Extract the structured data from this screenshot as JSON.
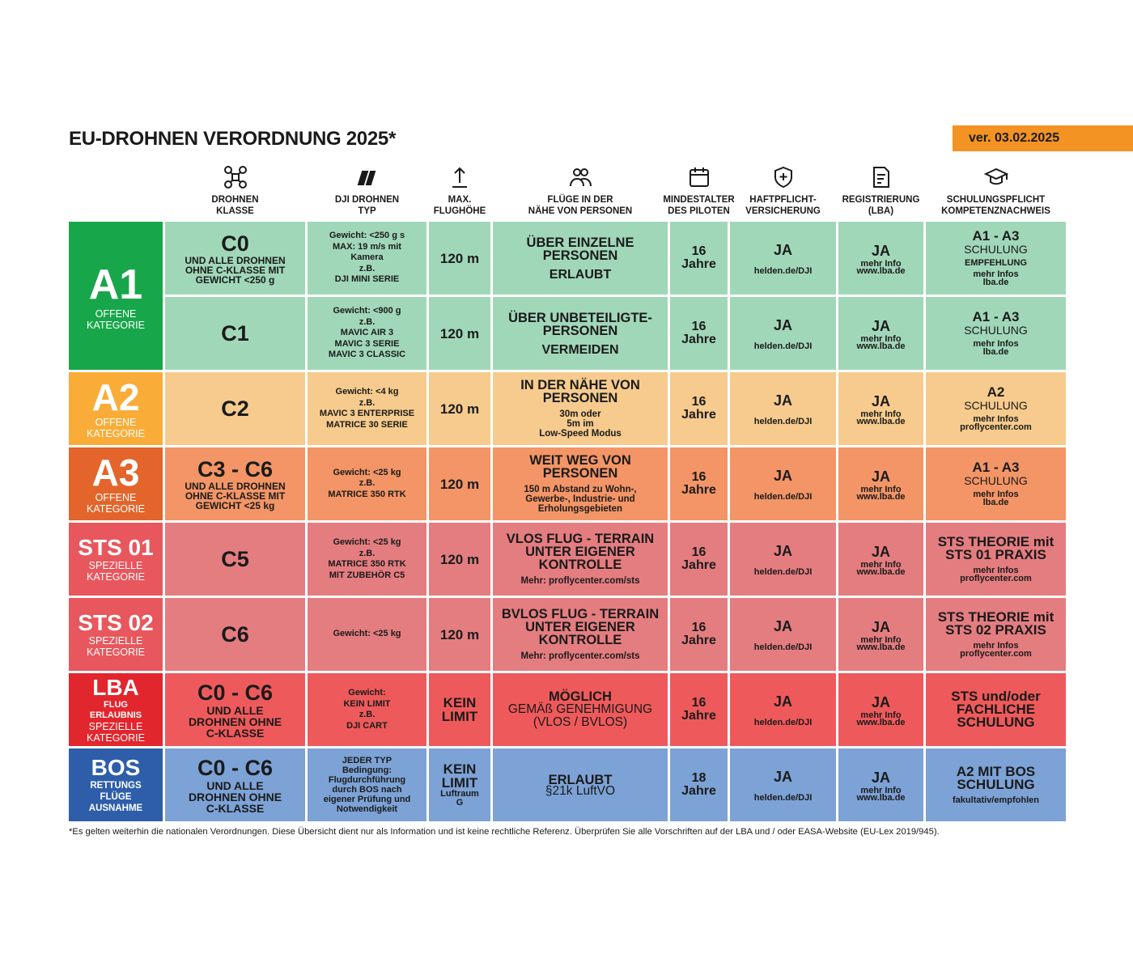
{
  "header": {
    "title": "EU-DROHNEN VERORDNUNG 2025*",
    "version": "ver. 03.02.2025"
  },
  "table": {
    "columns": [
      "DROHNEN\nKLASSE",
      "DJI DROHNEN\nTYP",
      "MAX.\nFLUGHÖHE",
      "FLÜGE IN DER\nNÄHE VON PERSONEN",
      "MINDESTALTER\nDES PILOTEN",
      "HAFTPFLICHT-\nVERSICHERUNG",
      "REGISTRIERUNG\n(LBA)",
      "SCHULUNGSPFLICHT\nKOMPETENZNACHWEIS"
    ],
    "categories": [
      [
        "A1",
        "OFFENE\nKATEGORIE"
      ],
      [
        "A2",
        "OFFENE\nKATEGORIE"
      ],
      [
        "A3",
        "OFFENE\nKATEGORIE"
      ],
      [
        "STS 01",
        "SPEZIELLE\nKATEGORIE"
      ],
      [
        "STS 02",
        "SPEZIELLE\nKATEGORIE"
      ],
      [
        "LBA",
        "FLUG\nERLAUBNIS",
        "SPEZIELLE\nKATEGORIE"
      ],
      [
        "BOS",
        "RETTUNGS\nFLÜGE\nAUSNAHME"
      ]
    ],
    "rows": [
      [
        [
          "C0",
          "UND ALLE DROHNEN\nOHNE C-KLASSE MIT\nGEWICHT <250 g"
        ],
        [
          "Gewicht: <250 g s\nMAX: 19 m/s mit\nKamera",
          "z.B.\nDJI MINI SERIE"
        ],
        [
          "120 m"
        ],
        [
          "ÜBER EINZELNE\nPERSONEN",
          "ERLAUBT"
        ],
        [
          "16\nJahre"
        ],
        [
          "JA",
          "helden.de/DJI"
        ],
        [
          "JA",
          "mehr Info\nwww.lba.de"
        ],
        [
          "A1 - A3",
          "SCHULUNG",
          "EMPFEHLUNG",
          "mehr Infos\nlba.de"
        ]
      ],
      [
        [
          "C1"
        ],
        [
          "Gewicht: <900 g",
          "z.B.\nMAVIC AIR 3\nMAVIC 3 SERIE\nMAVIC 3 CLASSIC"
        ],
        [
          "120 m"
        ],
        [
          "ÜBER UNBETEILIGTE-\nPERSONEN",
          "VERMEIDEN"
        ],
        [
          "16\nJahre"
        ],
        [
          "JA",
          "helden.de/DJI"
        ],
        [
          "JA",
          "mehr Info\nwww.lba.de"
        ],
        [
          "A1 - A3",
          "SCHULUNG",
          "mehr Infos\nlba.de"
        ]
      ],
      [
        [
          "C2"
        ],
        [
          "Gewicht: <4 kg",
          "z.B.\nMAVIC 3 ENTERPRISE\nMATRICE 30 SERIE"
        ],
        [
          "120 m"
        ],
        [
          "IN DER NÄHE VON\nPERSONEN",
          "30m oder\n5m im\nLow-Speed Modus"
        ],
        [
          "16\nJahre"
        ],
        [
          "JA",
          "helden.de/DJI"
        ],
        [
          "JA",
          "mehr Info\nwww.lba.de"
        ],
        [
          "A2",
          "SCHULUNG",
          "mehr Infos\nproflycenter.com"
        ]
      ],
      [
        [
          "C3 - C6",
          "UND ALLE DROHNEN\nOHNE C-KLASSE MIT\nGEWICHT <25 kg"
        ],
        [
          "Gewicht: <25 kg",
          "z.B.\nMATRICE 350 RTK"
        ],
        [
          "120 m"
        ],
        [
          "WEIT WEG VON\nPERSONEN",
          "150 m Abstand zu Wohn-,\nGewerbe-, Industrie- und\nErholungsgebieten"
        ],
        [
          "16\nJahre"
        ],
        [
          "JA",
          "helden.de/DJI"
        ],
        [
          "JA",
          "mehr Info\nwww.lba.de"
        ],
        [
          "A1 - A3",
          "SCHULUNG",
          "mehr Infos\nlba.de"
        ]
      ],
      [
        [
          "C5"
        ],
        [
          "Gewicht: <25 kg",
          "z.B.\nMATRICE 350 RTK\nMIT ZUBEHÖR C5"
        ],
        [
          "120 m"
        ],
        [
          "VLOS FLUG - TERRAIN\nUNTER EIGENER\nKONTROLLE",
          "Mehr: proflycenter.com/sts"
        ],
        [
          "16\nJahre"
        ],
        [
          "JA",
          "helden.de/DJI"
        ],
        [
          "JA",
          "mehr Info\nwww.lba.de"
        ],
        [
          "STS THEORIE mit\nSTS 01 PRAXIS",
          "mehr Infos\nproflycenter.com"
        ]
      ],
      [
        [
          "C6"
        ],
        [
          "Gewicht: <25 kg"
        ],
        [
          "120 m"
        ],
        [
          "BVLOS FLUG - TERRAIN\nUNTER EIGENER\nKONTROLLE",
          "Mehr: proflycenter.com/sts"
        ],
        [
          "16\nJahre"
        ],
        [
          "JA",
          "helden.de/DJI"
        ],
        [
          "JA",
          "mehr Info\nwww.lba.de"
        ],
        [
          "STS THEORIE mit\nSTS 02 PRAXIS",
          "mehr Infos\nproflycenter.com"
        ]
      ],
      [
        [
          "C0 - C6",
          "UND ALLE\nDROHNEN OHNE\nC-KLASSE"
        ],
        [
          "Gewicht:\nKEIN LIMIT",
          "z.B.\nDJI CART"
        ],
        [
          "KEIN\nLIMIT"
        ],
        [
          "MÖGLICH",
          "GEMÄß GENEHMIGUNG\n(VLOS / BVLOS)"
        ],
        [
          "16\nJahre"
        ],
        [
          "JA",
          "helden.de/DJI"
        ],
        [
          "JA",
          "mehr Info\nwww.lba.de"
        ],
        [
          "STS und/oder\nFACHLICHE\nSCHULUNG"
        ]
      ],
      [
        [
          "C0 - C6",
          "UND ALLE\nDROHNEN OHNE\nC-KLASSE"
        ],
        [
          "JEDER TYP\nBedingung:\nFlugdurchführung\ndurch BOS nach\neigener Prüfung und\nNotwendigkeit"
        ],
        [
          "KEIN\nLIMIT",
          "Luftraum\nG"
        ],
        [
          "ERLAUBT",
          "§21k LuftVO"
        ],
        [
          "18\nJahre"
        ],
        [
          "JA",
          "helden.de/DJI"
        ],
        [
          "JA",
          "mehr Info\nwww.lba.de"
        ],
        [
          "A2 MIT BOS\nSCHULUNG",
          "fakultativ/empfohlen"
        ]
      ]
    ]
  },
  "footnote": "*Es gelten weiterhin die nationalen Verordnungen. Diese Übersicht dient nur als Information und ist keine rechtliche Referenz. Überprüfen Sie alle Vorschriften auf der LBA und / oder EASA-Website (EU-Lex 2019/945)."
}
